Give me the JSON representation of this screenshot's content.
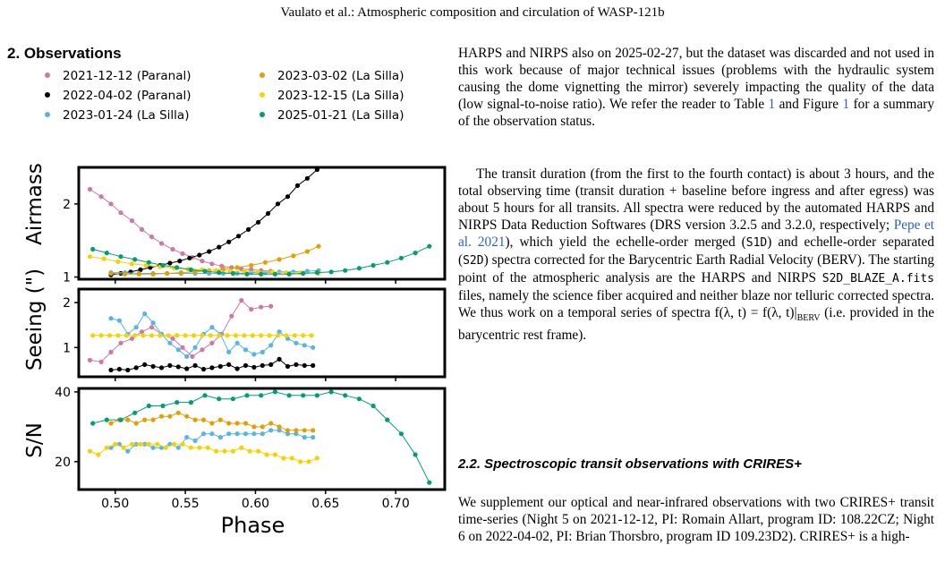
{
  "running_head": "Vaulato et al.: Atmospheric composition and circulation of WASP-121b",
  "section_heading": "2. Observations",
  "col2": {
    "p1": "HARPS and NIRPS also on 2025-02-27, but the dataset was discarded and not used in this work because of major technical issues (problems with the hydraulic system causing the dome vignetting the mirror) severely impacting the quality of the data (low signal-to-noise ratio). We refer the reader to Table",
    "p1_ref1": "1",
    "p1_mid": "and Figure",
    "p1_ref2": "1",
    "p1_end": "for a summary of the observation status.",
    "p2_a": "The transit duration (from the first to the fourth contact) is about 3 hours, and the total observing time (transit duration + baseline before ingress and after egress) was about 5 hours for all transits. All spectra were reduced by the automated HARPS and NIRPS Data Reduction Softwares (DRS version 3.2.5 and 3.2.0, respectively;",
    "p2_cite": "Pepe et al. 2021",
    "p2_b": "), which yield the echelle-order merged (",
    "p2_s1d": "S1D",
    "p2_c": ") and echelle-order separated (",
    "p2_s2d": "S2D",
    "p2_d": ") spectra corrected for the Barycentric Earth Radial Velocity (BERV). The starting point of the atmospheric analysis are the HARPS and NIRPS",
    "p2_file": "S2D_BLAZE_A.fits",
    "p2_e": "files, namely the science fiber acquired and neither blaze nor telluric corrected spectra. We thus work on a temporal series of spectra f(λ, t) = f(λ, t)|",
    "p2_sub": "BERV",
    "p2_f": "(i.e. provided in the barycentric rest frame).",
    "subheading": "2.2. Spectroscopic transit observations with CRIRES+",
    "p3": "We supplement our optical and near-infrared observations with two CRIRES+ transit time-series (Night 5 on 2021-12-12, PI: Romain Allart, program ID: 108.22CZ; Night 6 on 2022-04-02, PI: Brian Thorsbro, program ID 109.23D2). CRIRES+ is a high-"
  },
  "chart_data": {
    "type": "scatter",
    "legend": [
      {
        "name": "2021-12-12 (Paranal)",
        "color": "#cc79a7"
      },
      {
        "name": "2022-04-02 (Paranal)",
        "color": "#000000"
      },
      {
        "name": "2023-01-24 (La Silla)",
        "color": "#56b4e9"
      },
      {
        "name": "2023-03-02 (La Silla)",
        "color": "#e69f00"
      },
      {
        "name": "2023-12-15 (La Silla)",
        "color": "#f5d300"
      },
      {
        "name": "2025-01-21 (La Silla)",
        "color": "#009e73"
      }
    ],
    "xlabel": "Phase",
    "xlim": [
      0.474,
      0.735
    ],
    "xticks": [
      "0.50",
      "0.55",
      "0.60",
      "0.65",
      "0.70"
    ],
    "panels": [
      {
        "ylabel": "Airmass",
        "ylim": [
          0.97,
          2.5
        ],
        "yticks": [
          "1",
          "2"
        ],
        "series": [
          {
            "name": "2021-12-12 (Paranal)",
            "color": "#cc79a7",
            "x": [
              0.482,
              0.49,
              0.497,
              0.504,
              0.512,
              0.519,
              0.526,
              0.533,
              0.541,
              0.548,
              0.555,
              0.562,
              0.569,
              0.576,
              0.583,
              0.59,
              0.597,
              0.604,
              0.611
            ],
            "y": [
              2.2,
              2.1,
              2.0,
              1.88,
              1.77,
              1.65,
              1.55,
              1.46,
              1.38,
              1.32,
              1.27,
              1.22,
              1.18,
              1.15,
              1.13,
              1.11,
              1.1,
              1.09,
              1.08
            ]
          },
          {
            "name": "2022-04-02 (Paranal)",
            "color": "#000000",
            "x": [
              0.497,
              0.504,
              0.511,
              0.518,
              0.525,
              0.532,
              0.539,
              0.546,
              0.553,
              0.56,
              0.567,
              0.574,
              0.581,
              0.588,
              0.595,
              0.602,
              0.609,
              0.616,
              0.623,
              0.63,
              0.637,
              0.644
            ],
            "y": [
              1.03,
              1.05,
              1.07,
              1.1,
              1.13,
              1.16,
              1.19,
              1.22,
              1.26,
              1.3,
              1.35,
              1.41,
              1.48,
              1.56,
              1.65,
              1.75,
              1.87,
              2.0,
              2.1,
              2.25,
              2.35,
              2.47
            ]
          },
          {
            "name": "2023-01-24 (La Silla)",
            "color": "#56b4e9",
            "x": [
              0.497,
              0.507,
              0.517,
              0.527,
              0.537,
              0.547,
              0.557,
              0.567,
              0.577,
              0.587,
              0.597,
              0.607,
              0.617,
              0.627,
              0.637,
              0.645
            ],
            "y": [
              1.06,
              1.06,
              1.05,
              1.05,
              1.05,
              1.05,
              1.05,
              1.05,
              1.05,
              1.05,
              1.06,
              1.06,
              1.07,
              1.07,
              1.08,
              1.09
            ]
          },
          {
            "name": "2023-03-02 (La Silla)",
            "color": "#e69f00",
            "x": [
              0.497,
              0.507,
              0.517,
              0.527,
              0.537,
              0.547,
              0.557,
              0.567,
              0.577,
              0.587,
              0.597,
              0.607,
              0.617,
              0.627,
              0.637,
              0.645
            ],
            "y": [
              1.05,
              1.04,
              1.04,
              1.04,
              1.05,
              1.06,
              1.07,
              1.09,
              1.11,
              1.13,
              1.16,
              1.2,
              1.24,
              1.29,
              1.35,
              1.42
            ]
          },
          {
            "name": "2023-12-15 (La Silla)",
            "color": "#f5d300",
            "x": [
              0.482,
              0.492,
              0.502,
              0.512,
              0.522,
              0.532,
              0.542,
              0.552,
              0.562,
              0.572,
              0.582,
              0.592,
              0.602,
              0.612,
              0.622,
              0.632,
              0.645
            ],
            "y": [
              1.28,
              1.25,
              1.21,
              1.18,
              1.16,
              1.14,
              1.12,
              1.11,
              1.1,
              1.09,
              1.08,
              1.08,
              1.07,
              1.07,
              1.06,
              1.06,
              1.05
            ]
          },
          {
            "name": "2025-01-21 (La Silla)",
            "color": "#009e73",
            "x": [
              0.484,
              0.494,
              0.504,
              0.514,
              0.524,
              0.534,
              0.544,
              0.554,
              0.564,
              0.574,
              0.584,
              0.594,
              0.604,
              0.614,
              0.624,
              0.634,
              0.644,
              0.654,
              0.664,
              0.674,
              0.684,
              0.694,
              0.704,
              0.714,
              0.724
            ],
            "y": [
              1.38,
              1.33,
              1.28,
              1.24,
              1.2,
              1.16,
              1.13,
              1.1,
              1.08,
              1.06,
              1.05,
              1.04,
              1.04,
              1.04,
              1.04,
              1.05,
              1.06,
              1.07,
              1.09,
              1.12,
              1.16,
              1.2,
              1.26,
              1.33,
              1.42
            ]
          }
        ]
      },
      {
        "ylabel": "Seeing (\")",
        "ylim": [
          0.35,
          2.3
        ],
        "yticks": [
          "1",
          "2"
        ],
        "series": [
          {
            "name": "2021-12-12 (Paranal)",
            "color": "#cc79a7",
            "x": [
              0.482,
              0.49,
              0.497,
              0.504,
              0.512,
              0.519,
              0.526,
              0.533,
              0.541,
              0.548,
              0.555,
              0.562,
              0.569,
              0.576,
              0.583,
              0.59,
              0.597,
              0.604,
              0.611
            ],
            "y": [
              0.72,
              0.68,
              0.9,
              1.1,
              1.2,
              1.35,
              1.45,
              1.3,
              1.2,
              1.0,
              0.8,
              0.95,
              1.1,
              1.3,
              1.7,
              2.05,
              1.85,
              1.9,
              1.92
            ]
          },
          {
            "name": "2022-04-02 (Paranal)",
            "color": "#000000",
            "x": [
              0.497,
              0.503,
              0.509,
              0.515,
              0.521,
              0.527,
              0.533,
              0.539,
              0.545,
              0.551,
              0.557,
              0.563,
              0.569,
              0.575,
              0.581,
              0.587,
              0.593,
              0.599,
              0.605,
              0.611,
              0.617,
              0.623,
              0.629,
              0.635,
              0.641
            ],
            "y": [
              0.5,
              0.52,
              0.5,
              0.55,
              0.62,
              0.58,
              0.55,
              0.6,
              0.57,
              0.53,
              0.6,
              0.52,
              0.55,
              0.58,
              0.62,
              0.53,
              0.6,
              0.56,
              0.6,
              0.62,
              0.74,
              0.58,
              0.62,
              0.6,
              0.6
            ]
          },
          {
            "name": "2023-01-24 (La Silla)",
            "color": "#56b4e9",
            "x": [
              0.497,
              0.503,
              0.509,
              0.515,
              0.521,
              0.527,
              0.533,
              0.539,
              0.545,
              0.551,
              0.557,
              0.563,
              0.569,
              0.575,
              0.581,
              0.587,
              0.593,
              0.599,
              0.605,
              0.611,
              0.617,
              0.623,
              0.629,
              0.635,
              0.641
            ],
            "y": [
              1.65,
              1.6,
              1.3,
              1.45,
              1.75,
              1.55,
              1.3,
              1.1,
              0.95,
              0.8,
              1.0,
              1.3,
              1.45,
              1.3,
              0.9,
              1.1,
              0.95,
              0.85,
              0.9,
              1.05,
              1.35,
              1.2,
              1.1,
              1.05,
              1.0
            ]
          },
          {
            "name": "2023-12-15 (La Silla)",
            "color": "#f5d300",
            "x": [
              0.484,
              0.49,
              0.496,
              0.502,
              0.508,
              0.514,
              0.52,
              0.526,
              0.532,
              0.538,
              0.544,
              0.55,
              0.556,
              0.562,
              0.568,
              0.574,
              0.58,
              0.586,
              0.592,
              0.598,
              0.604,
              0.61,
              0.616,
              0.622,
              0.628,
              0.634,
              0.64
            ],
            "y": [
              1.27,
              1.27,
              1.27,
              1.27,
              1.27,
              1.27,
              1.27,
              1.27,
              1.27,
              1.27,
              1.27,
              1.27,
              1.27,
              1.27,
              1.27,
              1.27,
              1.27,
              1.27,
              1.27,
              1.27,
              1.27,
              1.27,
              1.27,
              1.27,
              1.27,
              1.27,
              1.27
            ]
          }
        ]
      },
      {
        "ylabel": "S/N",
        "ylim": [
          12,
          41
        ],
        "yticks": [
          "20",
          "40"
        ],
        "series": [
          {
            "name": "2023-01-24 (La Silla)",
            "color": "#56b4e9",
            "x": [
              0.497,
              0.503,
              0.509,
              0.515,
              0.521,
              0.527,
              0.533,
              0.539,
              0.545,
              0.551,
              0.557,
              0.563,
              0.569,
              0.575,
              0.581,
              0.587,
              0.593,
              0.599,
              0.605,
              0.611,
              0.617,
              0.623,
              0.629,
              0.635,
              0.641
            ],
            "y": [
              24,
              25,
              23,
              25,
              25,
              24,
              24,
              25,
              24,
              27,
              26,
              28,
              28,
              27,
              28,
              28,
              28,
              28,
              28,
              29,
              29,
              28,
              28,
              27,
              27
            ]
          },
          {
            "name": "2023-03-02 (La Silla)",
            "color": "#e69f00",
            "x": [
              0.497,
              0.503,
              0.509,
              0.515,
              0.521,
              0.527,
              0.533,
              0.539,
              0.545,
              0.551,
              0.557,
              0.563,
              0.569,
              0.575,
              0.581,
              0.587,
              0.593,
              0.599,
              0.605,
              0.611,
              0.617,
              0.623,
              0.629,
              0.635,
              0.641
            ],
            "y": [
              31,
              32,
              32,
              31,
              32,
              32,
              33,
              33,
              34,
              33,
              32,
              32,
              31,
              32,
              31,
              31,
              31,
              30,
              30,
              31,
              30,
              29,
              29,
              29,
              29
            ]
          },
          {
            "name": "2023-12-15 (La Silla)",
            "color": "#f5d300",
            "x": [
              0.482,
              0.488,
              0.494,
              0.5,
              0.506,
              0.512,
              0.518,
              0.524,
              0.53,
              0.536,
              0.542,
              0.548,
              0.554,
              0.56,
              0.566,
              0.572,
              0.578,
              0.584,
              0.59,
              0.596,
              0.602,
              0.608,
              0.614,
              0.62,
              0.626,
              0.632,
              0.638,
              0.644
            ],
            "y": [
              23,
              22,
              24,
              25,
              24,
              25,
              25,
              25,
              25,
              24,
              25,
              25,
              24,
              24,
              24,
              23,
              23,
              23,
              24,
              23,
              23,
              22,
              22,
              21,
              21,
              20,
              20,
              21
            ]
          },
          {
            "name": "2025-01-21 (La Silla)",
            "color": "#009e73",
            "x": [
              0.484,
              0.494,
              0.504,
              0.514,
              0.524,
              0.534,
              0.544,
              0.554,
              0.564,
              0.574,
              0.584,
              0.594,
              0.604,
              0.614,
              0.624,
              0.634,
              0.644,
              0.654,
              0.664,
              0.674,
              0.684,
              0.694,
              0.704,
              0.714,
              0.724
            ],
            "y": [
              31,
              32,
              32,
              34,
              36,
              36,
              37,
              37,
              39,
              38,
              38,
              39,
              39,
              40,
              39,
              39,
              39,
              40,
              39,
              38,
              36,
              32,
              28,
              22,
              14
            ]
          }
        ]
      }
    ]
  }
}
